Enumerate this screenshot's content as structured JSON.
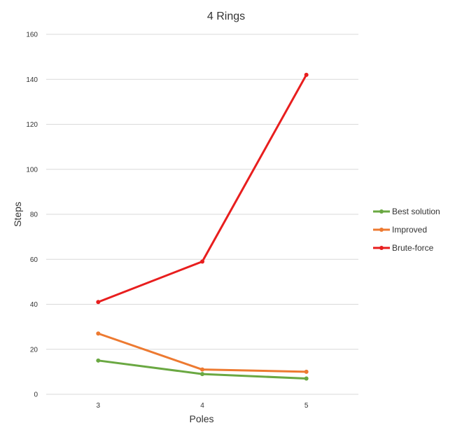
{
  "chart_data": {
    "type": "line",
    "title": "4 Rings",
    "xlabel": "Poles",
    "ylabel": "Steps",
    "categories": [
      "3",
      "4",
      "5"
    ],
    "ylim": [
      0,
      160
    ],
    "yticks": [
      0,
      20,
      40,
      60,
      80,
      100,
      120,
      140,
      160
    ],
    "grid": true,
    "legend_position": "right",
    "series": [
      {
        "name": "Best solution",
        "color": "#6aa842",
        "values": [
          15,
          9,
          7
        ]
      },
      {
        "name": "Improved",
        "color": "#ed7a31",
        "values": [
          27,
          11,
          10
        ]
      },
      {
        "name": "Brute-force",
        "color": "#e81e1e",
        "values": [
          41,
          59,
          142
        ]
      }
    ]
  }
}
